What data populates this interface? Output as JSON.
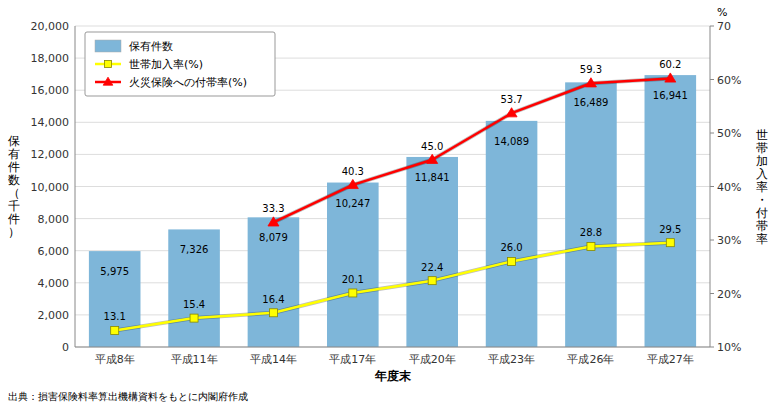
{
  "chart_data": {
    "type": "bar",
    "categories": [
      "平成8年",
      "平成11年",
      "平成14年",
      "平成17年",
      "平成20年",
      "平成23年",
      "平成26年",
      "平成27年"
    ],
    "series": [
      {
        "name": "保有件数",
        "type": "bar",
        "color": "#7EB6D9",
        "values": [
          5975,
          7326,
          8079,
          10247,
          11841,
          14089,
          16489,
          16941
        ],
        "value_labels": [
          "5,975",
          "7,326",
          "8,079",
          "10,247",
          "11,841",
          "14,089",
          "16,489",
          "16,941"
        ]
      },
      {
        "name": "世帯加入率(%)",
        "type": "line",
        "axis": "y2",
        "color": "#FFFF00",
        "marker": "square",
        "values": [
          13.1,
          15.4,
          16.4,
          20.1,
          22.4,
          26.0,
          28.8,
          29.5
        ],
        "value_labels": [
          "13.1",
          "15.4",
          "16.4",
          "20.1",
          "22.4",
          "26.0",
          "28.8",
          "29.5"
        ]
      },
      {
        "name": "火災保険への付帯率(%)",
        "type": "line",
        "axis": "y2",
        "color": "#FF0000",
        "marker": "triangle",
        "values": [
          null,
          null,
          33.3,
          40.3,
          45.0,
          53.7,
          59.3,
          60.2
        ],
        "value_labels": [
          null,
          null,
          "33.3",
          "40.3",
          "45.0",
          "53.7",
          "59.3",
          "60.2"
        ]
      }
    ],
    "xlabel": "年度末",
    "ylabel": "保\n有\n件\n数\n（\n千\n件\n）",
    "y2label": "世\n帯\n加\n入\n率\n・\n付\n帯\n率",
    "ylim": [
      0,
      20000
    ],
    "yticks": [
      0,
      {
        "value": 2000,
        "label": "2,000"
      },
      {
        "value": 4000,
        "label": "4,000"
      },
      {
        "value": 6000,
        "label": "6,000"
      },
      {
        "value": 8000,
        "label": "8,000"
      },
      {
        "value": 10000,
        "label": "10,000"
      },
      {
        "value": 12000,
        "label": "12,000"
      },
      {
        "value": 14000,
        "label": "14,000"
      },
      {
        "value": 16000,
        "label": "16,000"
      },
      {
        "value": 18000,
        "label": "18,000"
      },
      {
        "value": 20000,
        "label": "20,000"
      }
    ],
    "y2lim": [
      10,
      70
    ],
    "y2ticks": [
      {
        "value": 10,
        "label": "10%"
      },
      {
        "value": 20,
        "label": "20%"
      },
      {
        "value": 30,
        "label": "30%"
      },
      {
        "value": 40,
        "label": "40%"
      },
      {
        "value": 50,
        "label": "50%"
      },
      {
        "value": 60,
        "label": "60%"
      },
      70
    ],
    "annotations": [
      {
        "text": "%"
      }
    ],
    "source": "出典：損害保険料率算出機構資料をもとに内閣府作成",
    "grid": true,
    "legend": "upper left",
    "data_labels": true
  }
}
